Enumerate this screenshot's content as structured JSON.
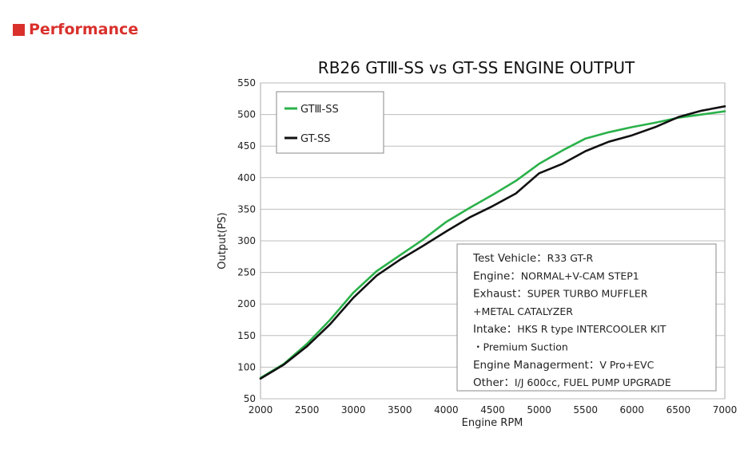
{
  "header": {
    "title": "Performance",
    "accent": "#d9302c"
  },
  "chart_data": {
    "type": "line",
    "title": "RB26 GTⅢ-SS vs GT-SS ENGINE OUTPUT",
    "xlabel": "Engine RPM",
    "ylabel": "Output(PS)",
    "xlim": [
      2000,
      7000
    ],
    "ylim": [
      50,
      550
    ],
    "x_ticks": [
      2000,
      2500,
      3000,
      3500,
      4000,
      4500,
      5000,
      5500,
      6000,
      6500,
      7000
    ],
    "y_ticks": [
      50,
      100,
      150,
      200,
      250,
      300,
      350,
      400,
      450,
      500,
      550
    ],
    "grid": "horizontal",
    "legend": "top-left",
    "series": [
      {
        "name": "GTⅢ-SS",
        "color": "#2bb14a",
        "x": [
          2000,
          2250,
          2500,
          2750,
          3000,
          3250,
          3500,
          3750,
          4000,
          4250,
          4500,
          4750,
          5000,
          5250,
          5500,
          5750,
          6000,
          6250,
          6500,
          6750,
          7000
        ],
        "y": [
          83,
          105,
          137,
          175,
          218,
          252,
          277,
          302,
          330,
          352,
          373,
          395,
          422,
          443,
          462,
          472,
          480,
          487,
          495,
          500,
          505
        ]
      },
      {
        "name": "GT-SS",
        "color": "#111111",
        "x": [
          2000,
          2250,
          2500,
          2750,
          3000,
          3250,
          3500,
          3750,
          4000,
          4250,
          4500,
          4750,
          5000,
          5250,
          5500,
          5750,
          6000,
          6250,
          6500,
          6750,
          7000
        ],
        "y": [
          82,
          104,
          133,
          168,
          210,
          245,
          270,
          292,
          315,
          337,
          355,
          375,
          407,
          422,
          442,
          457,
          467,
          480,
          496,
          506,
          513
        ]
      }
    ],
    "annotation": [
      {
        "key": "Test Vehicle：",
        "value": "R33 GT-R"
      },
      {
        "key": "Engine：",
        "value": "NORMAL+V-CAM STEP1"
      },
      {
        "key": "Exhaust：",
        "value": "SUPER TURBO MUFFLER"
      },
      {
        "key": "",
        "value": "+METAL CATALYZER"
      },
      {
        "key": "Intake：",
        "value": "HKS R type INTERCOOLER KIT"
      },
      {
        "key": "",
        "value": "・Premium Suction"
      },
      {
        "key": "Engine Managerment：",
        "value": "V Pro+EVC"
      },
      {
        "key": "Other：",
        "value": "I/J 600cc, FUEL PUMP UPGRADE"
      }
    ]
  }
}
